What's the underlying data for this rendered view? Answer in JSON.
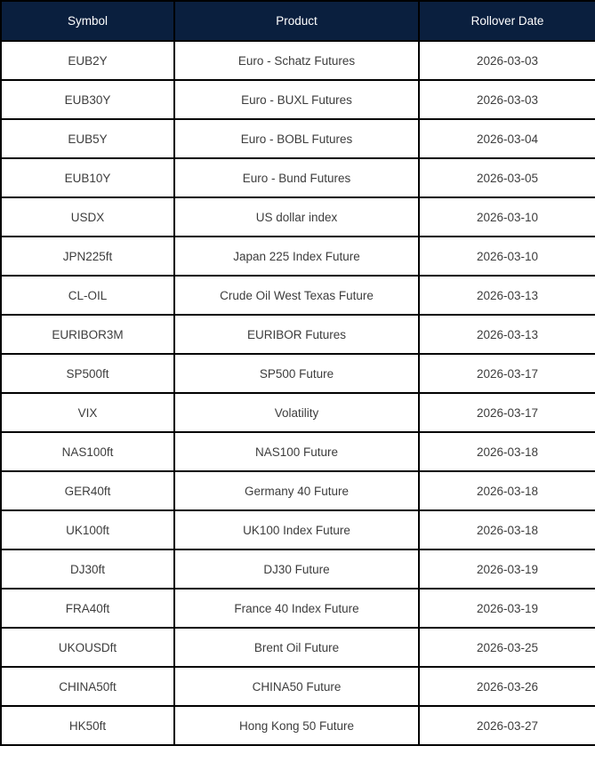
{
  "table": {
    "columns": [
      {
        "key": "symbol",
        "label": "Symbol"
      },
      {
        "key": "product",
        "label": "Product"
      },
      {
        "key": "rollover",
        "label": "Rollover Date"
      }
    ],
    "rows": [
      {
        "symbol": "EUB2Y",
        "product": "Euro - Schatz Futures",
        "rollover": "2026-03-03"
      },
      {
        "symbol": "EUB30Y",
        "product": "Euro - BUXL Futures",
        "rollover": "2026-03-03"
      },
      {
        "symbol": "EUB5Y",
        "product": "Euro - BOBL Futures",
        "rollover": "2026-03-04"
      },
      {
        "symbol": "EUB10Y",
        "product": "Euro - Bund Futures",
        "rollover": "2026-03-05"
      },
      {
        "symbol": "USDX",
        "product": "US dollar index",
        "rollover": "2026-03-10"
      },
      {
        "symbol": "JPN225ft",
        "product": "Japan 225 Index Future",
        "rollover": "2026-03-10"
      },
      {
        "symbol": "CL-OIL",
        "product": "Crude Oil West Texas Future",
        "rollover": "2026-03-13"
      },
      {
        "symbol": "EURIBOR3M",
        "product": "EURIBOR Futures",
        "rollover": "2026-03-13"
      },
      {
        "symbol": "SP500ft",
        "product": "SP500 Future",
        "rollover": "2026-03-17"
      },
      {
        "symbol": "VIX",
        "product": "Volatility",
        "rollover": "2026-03-17"
      },
      {
        "symbol": "NAS100ft",
        "product": "NAS100 Future",
        "rollover": "2026-03-18"
      },
      {
        "symbol": "GER40ft",
        "product": "Germany 40 Future",
        "rollover": "2026-03-18"
      },
      {
        "symbol": "UK100ft",
        "product": "UK100 Index Future",
        "rollover": "2026-03-18"
      },
      {
        "symbol": "DJ30ft",
        "product": "DJ30 Future",
        "rollover": "2026-03-19"
      },
      {
        "symbol": "FRA40ft",
        "product": "France 40 Index Future",
        "rollover": "2026-03-19"
      },
      {
        "symbol": "UKOUSDft",
        "product": "Brent Oil Future",
        "rollover": "2026-03-25"
      },
      {
        "symbol": "CHINA50ft",
        "product": "CHINA50 Future",
        "rollover": "2026-03-26"
      },
      {
        "symbol": "HK50ft",
        "product": "Hong Kong 50 Future",
        "rollover": "2026-03-27"
      }
    ],
    "colors": {
      "header_bg": "#0a1f3e",
      "header_text": "#ffffff",
      "body_text": "#3d3d3d",
      "border": "#000000",
      "row_bg": "#ffffff"
    }
  }
}
